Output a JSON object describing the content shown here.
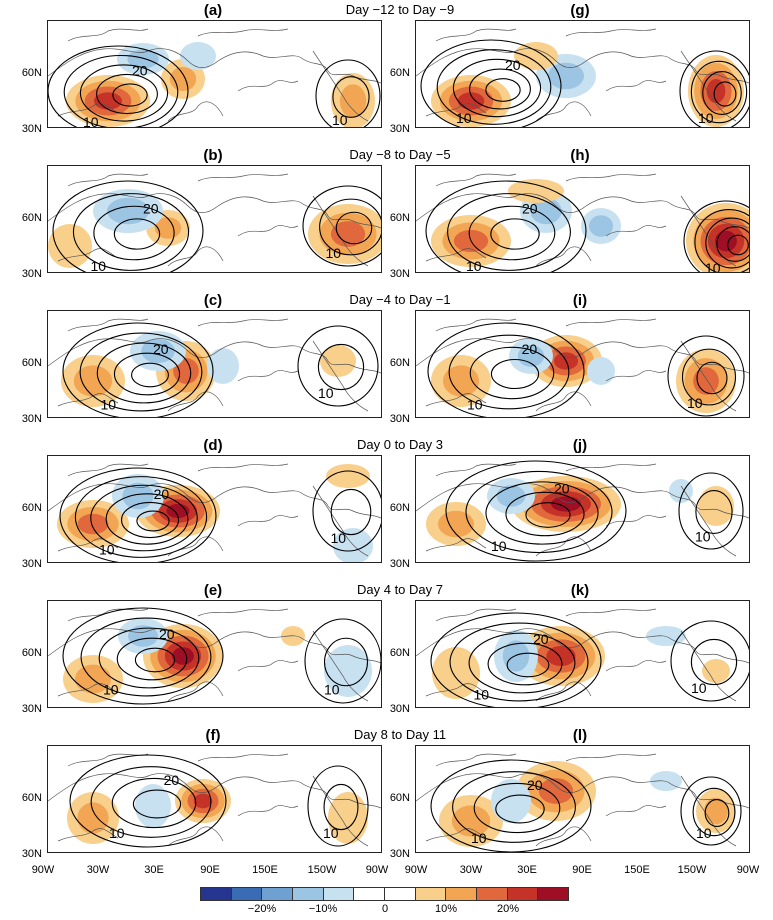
{
  "row_titles": [
    "Day −12 to Day −9",
    "Day −8 to Day −5",
    "Day −4 to Day −1",
    "Day 0 to Day 3",
    "Day 4 to Day 7",
    "Day 8 to Day 11"
  ],
  "panel_labels": [
    "(a)",
    "(b)",
    "(c)",
    "(d)",
    "(e)",
    "(f)",
    "(g)",
    "(h)",
    "(i)",
    "(j)",
    "(k)",
    "(l)"
  ],
  "lat_labels": [
    "60N",
    "30N"
  ],
  "lon_labels": [
    "90W",
    "30W",
    "30E",
    "90E",
    "150E",
    "150W",
    "90W"
  ],
  "colorbar": {
    "colors": [
      "#26358f",
      "#3a6bb5",
      "#6fa0d2",
      "#9cc4e3",
      "#c7e1f1",
      "#ffffff",
      "#ffffff",
      "#f8cf8b",
      "#f2a654",
      "#e0683c",
      "#c43228",
      "#9e0e24"
    ],
    "labels": [
      "−20%",
      "−10%",
      "0",
      "10%",
      "20%"
    ]
  },
  "contour_labels": {
    "ten": "10",
    "twenty": "20"
  }
}
